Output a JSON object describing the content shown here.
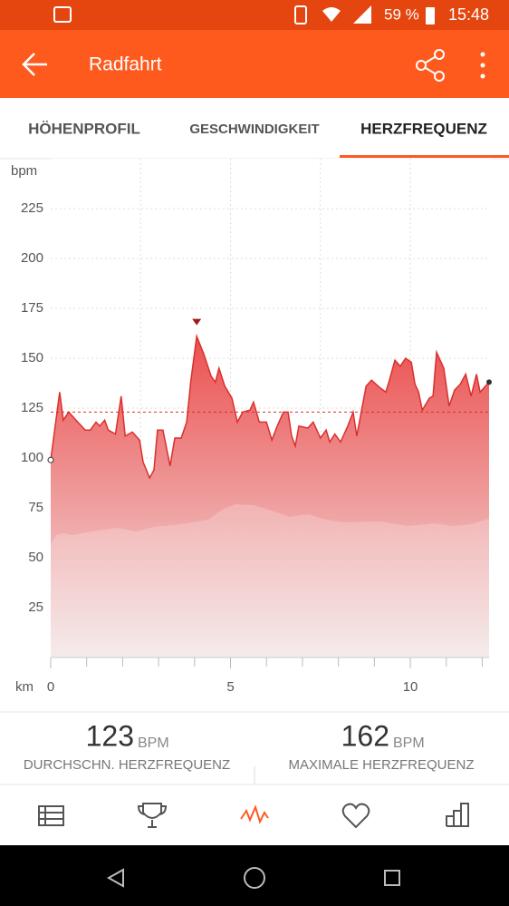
{
  "status_bar": {
    "battery": "59 %",
    "time": "15:48"
  },
  "app_bar": {
    "title": "Radfahrt"
  },
  "tabs": [
    "HÖHENPROFIL",
    "GESCHWINDIGKEIT",
    "HERZFREQUENZ"
  ],
  "chart_data": {
    "type": "area",
    "y_label": "bpm",
    "x_label": "km",
    "color": "#d9302c",
    "x": [
      0,
      0.25,
      0.35,
      0.5,
      0.65,
      0.96,
      1.1,
      1.26,
      1.36,
      1.5,
      1.6,
      1.8,
      1.96,
      2.07,
      2.27,
      2.47,
      2.57,
      2.75,
      2.87,
      2.97,
      3.12,
      3.32,
      3.45,
      3.63,
      3.78,
      3.9,
      4.06,
      4.26,
      4.46,
      4.58,
      4.68,
      4.84,
      5.04,
      5.19,
      5.34,
      5.54,
      5.64,
      5.8,
      6.0,
      6.15,
      6.3,
      6.47,
      6.6,
      6.7,
      6.8,
      6.9,
      7.15,
      7.3,
      7.5,
      7.66,
      7.76,
      7.9,
      8.06,
      8.26,
      8.41,
      8.51,
      8.77,
      8.92,
      9.17,
      9.32,
      9.42,
      9.57,
      9.72,
      9.87,
      10.03,
      10.13,
      10.23,
      10.33,
      10.53,
      10.63,
      10.73,
      10.93,
      11.08,
      11.23,
      11.39,
      11.54,
      11.69,
      11.84,
      11.94,
      12.19
    ],
    "values": [
      99,
      133,
      119,
      123,
      120,
      114,
      114,
      118,
      116,
      119,
      114,
      112,
      131,
      111,
      113,
      109,
      98,
      90,
      94,
      114,
      114,
      96,
      110,
      110,
      118,
      139,
      161,
      152,
      141,
      138,
      145,
      136,
      130,
      118,
      123,
      124,
      128,
      118,
      118,
      109,
      116,
      123,
      123,
      111,
      106,
      116,
      115,
      118,
      110,
      114,
      108,
      112,
      108,
      116,
      123,
      111,
      136,
      139,
      135,
      133,
      139,
      149,
      146,
      150,
      148,
      137,
      133,
      124,
      130,
      131,
      153,
      145,
      126,
      134,
      137,
      142,
      131,
      142,
      133,
      138
    ],
    "xlim": [
      0,
      12.2
    ],
    "xticks": [
      0,
      5,
      10
    ],
    "xgrid": [
      2.5,
      5,
      7.5,
      10
    ],
    "xminorticks": [
      1,
      2,
      3,
      4,
      6,
      7,
      8,
      9,
      11,
      12
    ],
    "ylim": [
      0,
      250
    ],
    "yticks": [
      25,
      50,
      75,
      100,
      125,
      150,
      175,
      200,
      225
    ]
  },
  "stats": [
    {
      "value": 123,
      "unit": "BPM",
      "label": "DURCHSCHN. HERZFREQUENZ"
    },
    {
      "value": 162,
      "unit": "BPM",
      "label": "MAXIMALE HERZFREQUENZ"
    }
  ]
}
